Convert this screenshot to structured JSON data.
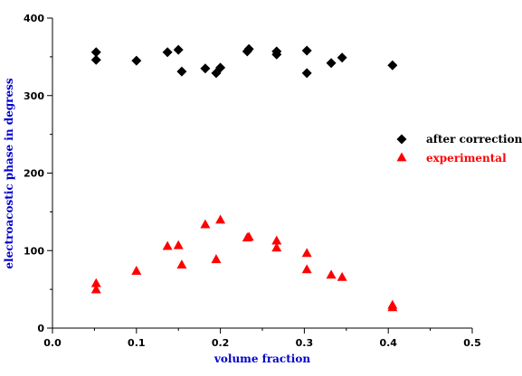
{
  "chart_data": {
    "type": "scatter",
    "xlabel": "volume fraction",
    "ylabel": "electroacostic phase in degress",
    "xlim": [
      0,
      0.5
    ],
    "ylim": [
      0,
      400
    ],
    "x_ticks": [
      "0.0",
      "0.1",
      "0.2",
      "0.3",
      "0.4",
      "0.5"
    ],
    "y_ticks": [
      "0",
      "100",
      "200",
      "300",
      "400"
    ],
    "axis_label_color": "#0000cc",
    "legend_position": "right",
    "grid": false,
    "series": [
      {
        "name": "after correction",
        "marker": "diamond",
        "color": "#000000",
        "points": [
          [
            0.052,
            356
          ],
          [
            0.052,
            346
          ],
          [
            0.1,
            345
          ],
          [
            0.137,
            356
          ],
          [
            0.15,
            359
          ],
          [
            0.154,
            331
          ],
          [
            0.182,
            335
          ],
          [
            0.195,
            329
          ],
          [
            0.2,
            336
          ],
          [
            0.232,
            357
          ],
          [
            0.234,
            360
          ],
          [
            0.267,
            353
          ],
          [
            0.267,
            357
          ],
          [
            0.303,
            358
          ],
          [
            0.303,
            329
          ],
          [
            0.332,
            342
          ],
          [
            0.345,
            349
          ],
          [
            0.405,
            339
          ]
        ]
      },
      {
        "name": "experimental",
        "marker": "triangle",
        "color": "#ff0000",
        "points": [
          [
            0.052,
            58
          ],
          [
            0.052,
            50
          ],
          [
            0.1,
            74
          ],
          [
            0.137,
            106
          ],
          [
            0.15,
            107
          ],
          [
            0.154,
            82
          ],
          [
            0.182,
            134
          ],
          [
            0.195,
            89
          ],
          [
            0.2,
            140
          ],
          [
            0.232,
            117
          ],
          [
            0.234,
            118
          ],
          [
            0.267,
            104
          ],
          [
            0.267,
            113
          ],
          [
            0.303,
            97
          ],
          [
            0.303,
            76
          ],
          [
            0.332,
            69
          ],
          [
            0.345,
            66
          ],
          [
            0.405,
            30
          ],
          [
            0.405,
            27
          ]
        ]
      }
    ]
  }
}
